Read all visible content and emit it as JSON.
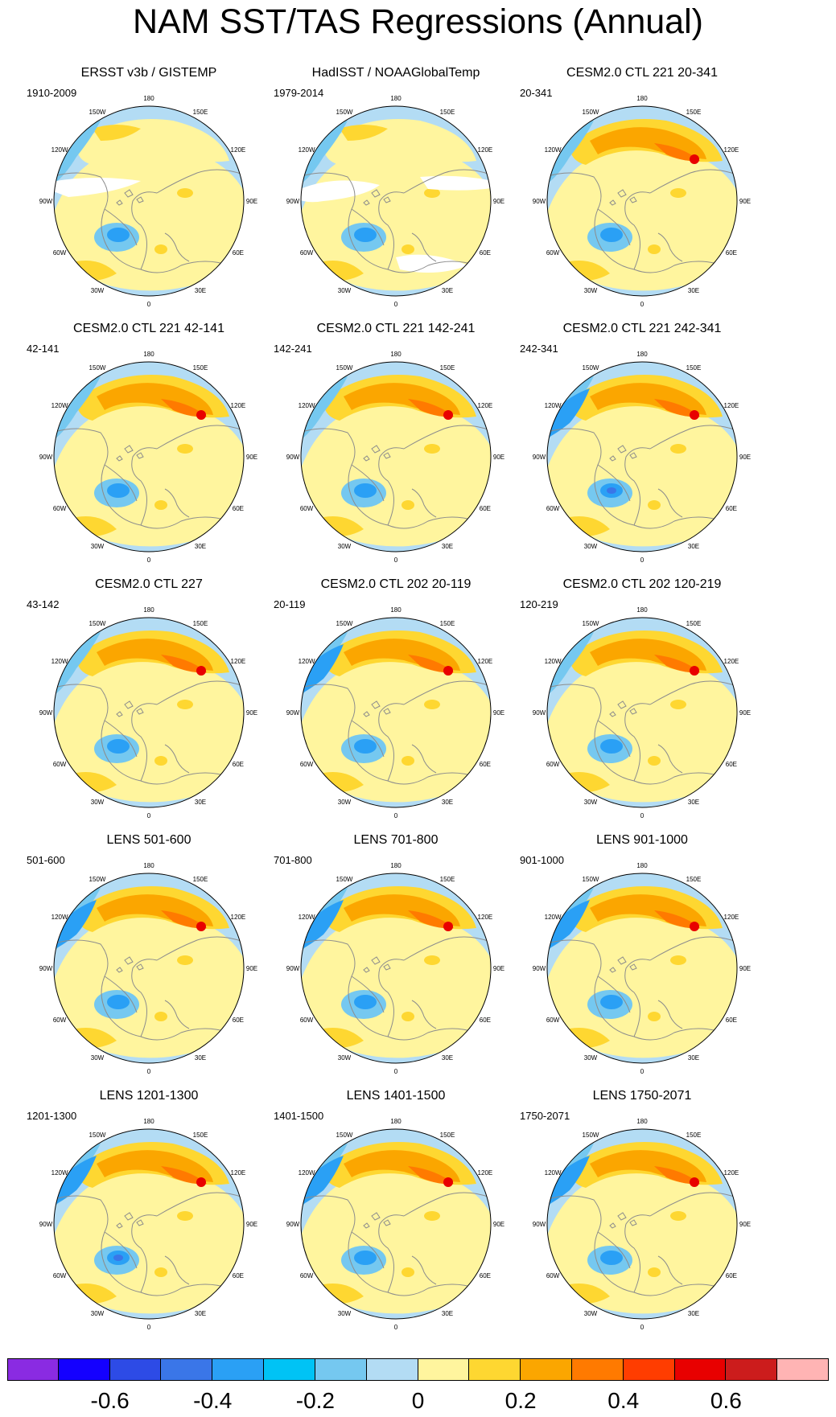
{
  "title": "NAM SST/TAS Regressions (Annual)",
  "longitude_labels": [
    "180",
    "150E",
    "120E",
    "90E",
    "60E",
    "30E",
    "0",
    "30W",
    "60W",
    "90W",
    "120W",
    "150W"
  ],
  "panels": [
    {
      "title": "ERSST v3b / GISTEMP",
      "period": "1910-2009"
    },
    {
      "title": "HadISST / NOAAGlobalTemp",
      "period": "1979-2014"
    },
    {
      "title": "CESM2.0 CTL 221 20-341",
      "period": "20-341"
    },
    {
      "title": "CESM2.0 CTL 221 42-141",
      "period": "42-141"
    },
    {
      "title": "CESM2.0 CTL 221 142-241",
      "period": "142-241"
    },
    {
      "title": "CESM2.0 CTL 221 242-341",
      "period": "242-341"
    },
    {
      "title": "CESM2.0 CTL 227",
      "period": "43-142"
    },
    {
      "title": "CESM2.0 CTL 202 20-119",
      "period": "20-119"
    },
    {
      "title": "CESM2.0 CTL 202 120-219",
      "period": "120-219"
    },
    {
      "title": "LENS 501-600",
      "period": "501-600"
    },
    {
      "title": "LENS 701-800",
      "period": "701-800"
    },
    {
      "title": "LENS 901-1000",
      "period": "901-1000"
    },
    {
      "title": "LENS 1201-1300",
      "period": "1201-1300"
    },
    {
      "title": "LENS 1401-1500",
      "period": "1401-1500"
    },
    {
      "title": "LENS 1750-2071",
      "period": "1750-2071"
    }
  ],
  "colorbar": {
    "colors": [
      "#8a2be2",
      "#1400ff",
      "#2d4be6",
      "#3a76e8",
      "#2aa0f5",
      "#00c3f5",
      "#75c8f0",
      "#b3dcf4",
      "#fff59e",
      "#fed731",
      "#fba600",
      "#ff7a00",
      "#ff3d00",
      "#e80000",
      "#cc1c1c",
      "#ffb4b4"
    ],
    "tick_labels": [
      "-0.6",
      "-0.4",
      "-0.2",
      "0",
      "0.2",
      "0.4",
      "0.6"
    ],
    "tick_values": [
      -0.6,
      -0.4,
      -0.2,
      0,
      0.2,
      0.4,
      0.6
    ],
    "range": [
      -0.8,
      0.8
    ]
  },
  "palette": {
    "background": "#b3dcf4",
    "weak_warm": "#fff59e",
    "warm": "#fed731",
    "warmer": "#fba600",
    "hot": "#ff7a00",
    "hotter": "#e80000",
    "cool": "#75c8f0",
    "cold": "#2aa0f5",
    "colder": "#3a76e8",
    "coast": "#8c8c8c"
  }
}
